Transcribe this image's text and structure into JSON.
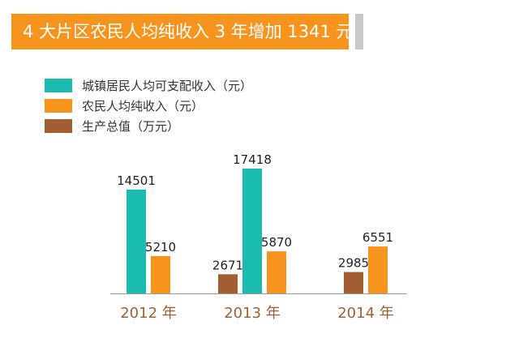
{
  "header": {
    "title": "4 大片区农民人均纯收入 3 年增加 1341 元",
    "bar_color": "#f7941d"
  },
  "chart_data": {
    "type": "bar",
    "title": "4 大片区农民人均纯收入 3 年增加 1341 元",
    "categories": [
      "2012 年",
      "2013 年",
      "2014 年"
    ],
    "series": [
      {
        "name": "城镇居民人均可支配收入（元）",
        "color": "#1bbbb0",
        "values": [
          14501,
          17418,
          null
        ]
      },
      {
        "name": "农民人均纯收入（元）",
        "color": "#f7941d",
        "values": [
          5210,
          5870,
          6551
        ]
      },
      {
        "name": "生产总值（万元）",
        "color": "#a35f33",
        "values": [
          null,
          2671,
          2985
        ]
      }
    ],
    "xlabel": "",
    "ylabel": "",
    "legend_position": "top-left",
    "grid": false,
    "axis_color": "#999999",
    "category_label_color": "#a35f33"
  }
}
